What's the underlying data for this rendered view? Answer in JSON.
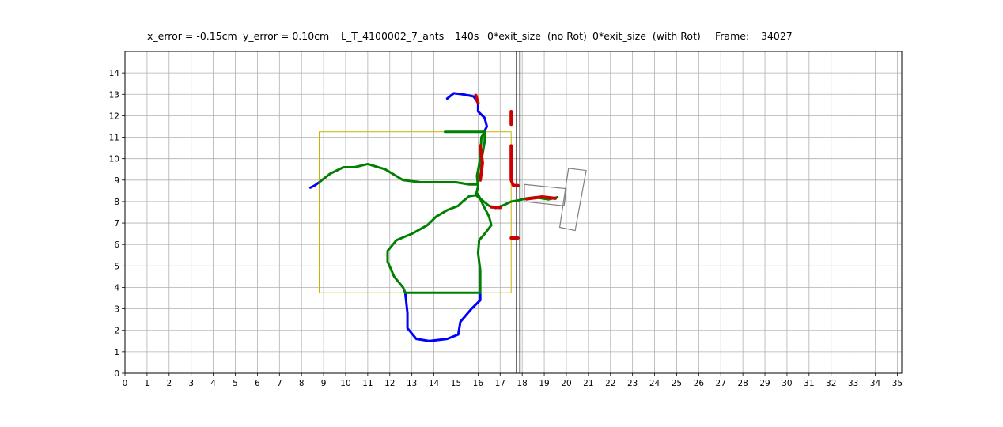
{
  "title_parts": {
    "x_error": "x_error = -0.15cm",
    "y_error": "y_error = 0.10cm",
    "experiment": "L_T_4100002_7_ants",
    "time": "140s",
    "no_rot": "0*exit_size  (no Rot)",
    "with_rot": "0*exit_size  (with Rot)",
    "frame_label": "Frame:",
    "frame_value": "34027"
  },
  "chart_data": {
    "type": "line",
    "xlim": [
      0,
      35.2
    ],
    "ylim": [
      0,
      15
    ],
    "x_ticks": [
      0,
      1,
      2,
      3,
      4,
      5,
      6,
      7,
      8,
      9,
      10,
      11,
      12,
      13,
      14,
      15,
      16,
      17,
      18,
      19,
      20,
      21,
      22,
      23,
      24,
      25,
      26,
      27,
      28,
      29,
      30,
      31,
      32,
      33,
      34,
      35
    ],
    "y_ticks": [
      0,
      1,
      2,
      3,
      4,
      5,
      6,
      7,
      8,
      9,
      10,
      11,
      12,
      13,
      14
    ],
    "grid": true,
    "colors": {
      "blue_track": "#0000ff",
      "green_track": "#008000",
      "red_track": "#cc0000",
      "yellow_box": "#c8b400",
      "load_shape": "#808080",
      "walls": "#000000",
      "grid": "#b0b0b0"
    },
    "walls": {
      "x": [
        17.75,
        17.9
      ]
    },
    "yellow_rectangle": {
      "x0": 8.8,
      "y0": 3.75,
      "x1": 17.5,
      "y1": 11.25
    },
    "load_outline": {
      "box_a": [
        [
          18.1,
          8.8
        ],
        [
          20.0,
          8.6
        ],
        [
          19.9,
          7.8
        ],
        [
          18.1,
          8.0
        ]
      ],
      "box_b": [
        [
          20.1,
          9.55
        ],
        [
          20.9,
          9.45
        ],
        [
          20.4,
          6.65
        ],
        [
          19.7,
          6.8
        ]
      ]
    },
    "series": [
      {
        "color": "blue",
        "paths": [
          [
            [
              8.4,
              8.65
            ],
            [
              8.6,
              8.75
            ],
            [
              8.8,
              8.9
            ]
          ],
          [
            [
              14.6,
              12.8
            ],
            [
              14.9,
              13.05
            ],
            [
              15.3,
              13.0
            ],
            [
              15.8,
              12.9
            ],
            [
              16.0,
              12.6
            ],
            [
              16.0,
              12.2
            ],
            [
              16.3,
              11.9
            ],
            [
              16.4,
              11.5
            ],
            [
              16.3,
              11.3
            ]
          ],
          [
            [
              16.1,
              3.75
            ],
            [
              16.1,
              3.4
            ],
            [
              15.7,
              3.0
            ],
            [
              15.2,
              2.4
            ],
            [
              15.1,
              1.8
            ],
            [
              14.6,
              1.6
            ],
            [
              13.8,
              1.5
            ],
            [
              13.2,
              1.6
            ],
            [
              12.8,
              2.1
            ],
            [
              12.8,
              2.8
            ],
            [
              12.7,
              3.75
            ]
          ]
        ]
      },
      {
        "color": "green",
        "paths": [
          [
            [
              8.8,
              8.9
            ],
            [
              9.3,
              9.3
            ],
            [
              9.9,
              9.6
            ],
            [
              10.4,
              9.6
            ],
            [
              11.0,
              9.75
            ],
            [
              11.8,
              9.5
            ],
            [
              12.6,
              9.0
            ],
            [
              13.4,
              8.9
            ],
            [
              14.2,
              8.9
            ],
            [
              15.0,
              8.9
            ],
            [
              15.6,
              8.8
            ],
            [
              16.0,
              8.8
            ]
          ],
          [
            [
              16.0,
              8.8
            ],
            [
              16.0,
              9.4
            ],
            [
              16.2,
              10.2
            ],
            [
              16.3,
              10.8
            ],
            [
              16.3,
              11.25
            ],
            [
              16.15,
              11.0
            ],
            [
              16.1,
              10.0
            ],
            [
              15.95,
              9.2
            ],
            [
              16.0,
              8.7
            ],
            [
              15.9,
              8.3
            ]
          ],
          [
            [
              14.5,
              11.25
            ],
            [
              16.3,
              11.25
            ]
          ],
          [
            [
              15.9,
              8.3
            ],
            [
              15.6,
              8.25
            ],
            [
              15.3,
              8.0
            ],
            [
              15.1,
              7.8
            ],
            [
              14.6,
              7.6
            ],
            [
              14.1,
              7.3
            ],
            [
              13.7,
              6.9
            ],
            [
              13.0,
              6.5
            ],
            [
              12.3,
              6.2
            ],
            [
              11.9,
              5.7
            ],
            [
              11.9,
              5.2
            ],
            [
              12.2,
              4.5
            ],
            [
              12.6,
              4.0
            ],
            [
              12.7,
              3.75
            ]
          ],
          [
            [
              12.7,
              3.75
            ],
            [
              16.1,
              3.75
            ]
          ],
          [
            [
              16.1,
              3.75
            ],
            [
              16.1,
              4.2
            ],
            [
              16.1,
              4.8
            ],
            [
              16.0,
              5.6
            ],
            [
              16.05,
              6.2
            ],
            [
              16.3,
              6.5
            ],
            [
              16.6,
              6.9
            ],
            [
              16.5,
              7.3
            ],
            [
              16.2,
              7.9
            ],
            [
              16.0,
              8.35
            ]
          ],
          [
            [
              15.9,
              8.3
            ],
            [
              16.2,
              8.05
            ],
            [
              16.5,
              7.8
            ],
            [
              16.8,
              7.7
            ],
            [
              17.2,
              7.85
            ],
            [
              17.5,
              8.0
            ],
            [
              17.8,
              8.05
            ],
            [
              18.2,
              8.15
            ],
            [
              18.6,
              8.2
            ],
            [
              19.2,
              8.1
            ],
            [
              19.6,
              8.2
            ]
          ]
        ]
      },
      {
        "color": "red",
        "paths": [
          [
            [
              15.9,
              12.95
            ],
            [
              16.0,
              12.6
            ]
          ],
          [
            [
              17.5,
              12.2
            ],
            [
              17.5,
              11.6
            ]
          ],
          [
            [
              17.5,
              10.6
            ],
            [
              17.5,
              9.0
            ],
            [
              17.6,
              8.75
            ],
            [
              17.8,
              8.75
            ]
          ],
          [
            [
              17.5,
              6.3
            ],
            [
              17.8,
              6.3
            ]
          ],
          [
            [
              16.1,
              10.6
            ],
            [
              16.2,
              9.8
            ],
            [
              16.1,
              9.0
            ]
          ],
          [
            [
              16.6,
              7.75
            ],
            [
              17.0,
              7.72
            ]
          ],
          [
            [
              18.2,
              8.12
            ],
            [
              18.9,
              8.22
            ],
            [
              19.5,
              8.15
            ]
          ]
        ]
      }
    ]
  }
}
